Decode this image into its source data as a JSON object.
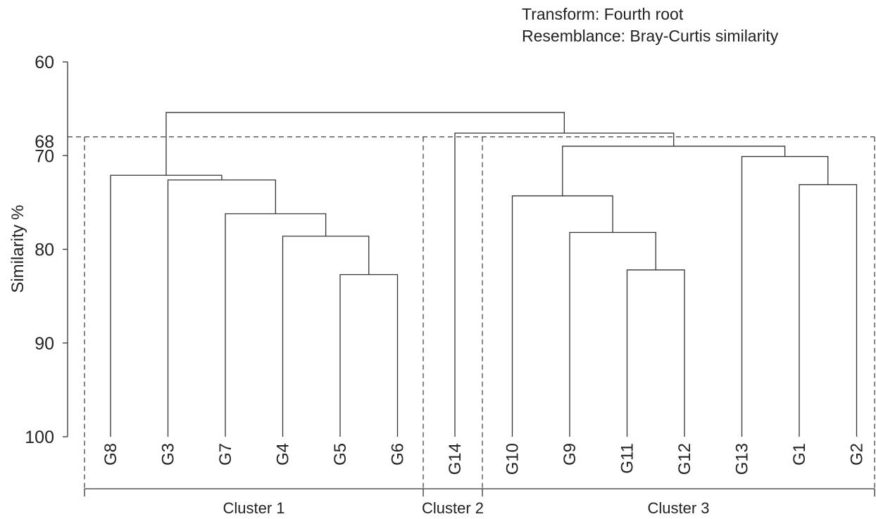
{
  "chart_data": {
    "type": "dendrogram",
    "annotation_lines": [
      "Transform: Fourth root",
      "Resemblance: Bray-Curtis similarity"
    ],
    "ylabel": "Similarity %",
    "ylim": [
      100,
      60
    ],
    "y_ticks": [
      60,
      70,
      80,
      90,
      100
    ],
    "threshold": 68,
    "threshold_label": "68",
    "leaves": [
      "G8",
      "G3",
      "G7",
      "G4",
      "G5",
      "G6",
      "G14",
      "G10",
      "G9",
      "G11",
      "G12",
      "G13",
      "G1",
      "G2"
    ],
    "merges": [
      {
        "left": "G5",
        "right": "G6",
        "similarity": 82.7
      },
      {
        "left": "G4",
        "right": "G5-G6",
        "similarity": 78.6
      },
      {
        "left": "G7",
        "right": "G4-G5-G6",
        "similarity": 76.2
      },
      {
        "left": "G3",
        "right": "G7-G4-G5-G6",
        "similarity": 72.6
      },
      {
        "left": "G8",
        "right": "G3..G6",
        "similarity": 72.1
      },
      {
        "left": "G11",
        "right": "G12",
        "similarity": 82.2
      },
      {
        "left": "G9",
        "right": "G11-G12",
        "similarity": 78.2
      },
      {
        "left": "G10",
        "right": "G9-G11-G12",
        "similarity": 74.3
      },
      {
        "left": "G1",
        "right": "G2",
        "similarity": 73.1
      },
      {
        "left": "G13",
        "right": "G1-G2",
        "similarity": 70.1
      },
      {
        "left": "G10..G12",
        "right": "G13-G1-G2",
        "similarity": 69.0
      },
      {
        "left": "G14",
        "right": "G10..G2",
        "similarity": 67.6
      },
      {
        "left": "G8..G6",
        "right": "G14..G2",
        "similarity": 65.4
      }
    ],
    "clusters": [
      {
        "label": "Cluster 1",
        "members": [
          "G8",
          "G3",
          "G7",
          "G4",
          "G5",
          "G6"
        ]
      },
      {
        "label": "Cluster 2",
        "members": [
          "G14"
        ]
      },
      {
        "label": "Cluster 3",
        "members": [
          "G10",
          "G9",
          "G11",
          "G12",
          "G13",
          "G1",
          "G2"
        ]
      }
    ]
  }
}
